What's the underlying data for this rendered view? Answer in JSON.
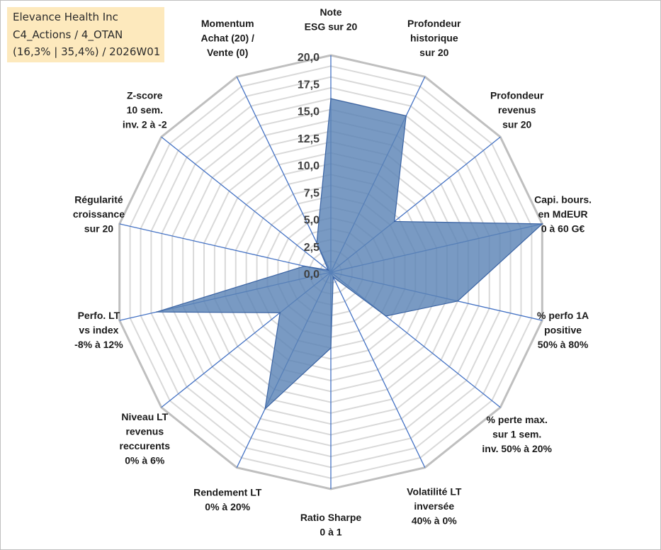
{
  "info_box": {
    "line1": "Elevance Health Inc",
    "line2": "C4_Actions / 4_OTAN",
    "line3": "(16,3% | 35,4%) / 2026W01"
  },
  "colors": {
    "fill": "#5b84b6",
    "stroke": "#3a63a3",
    "spokes": "#4472c4",
    "outer_grid": "#bfbfbf",
    "inner_grid": "#d9d9d9"
  },
  "chart_data": {
    "type": "radar",
    "ylim": [
      0,
      20
    ],
    "tick_values": [
      0,
      2.5,
      5,
      7.5,
      10,
      12.5,
      15,
      17.5,
      20
    ],
    "tick_labels": [
      "0,0",
      "2,5",
      "5,0",
      "7,5",
      "10,0",
      "12,5",
      "15,0",
      "17,5",
      "20,0"
    ],
    "grid": true,
    "categories": [
      [
        "Note",
        "ESG sur 20"
      ],
      [
        "Profondeur",
        "historique",
        "sur 20"
      ],
      [
        "Profondeur",
        "revenus",
        "sur 20"
      ],
      [
        "Capi. bours.",
        "en MdEUR",
        "0 à 60 G€"
      ],
      [
        "% perfo 1A",
        "positive",
        "50% à 80%"
      ],
      [
        "% perte max.",
        "sur 1 sem.",
        "inv. 50% à 20%"
      ],
      [
        "Volatilité LT",
        "inversée",
        "40% à 0%"
      ],
      [
        "Ratio Sharpe",
        "0 à 1"
      ],
      [
        "Rendement LT",
        "0% à 20%"
      ],
      [
        "Niveau LT",
        "revenus",
        "reccurents",
        "0% à 6%"
      ],
      [
        "Perfo. LT",
        "vs index",
        "-8% à 12%"
      ],
      [
        "Régularité",
        "croissance",
        "sur 20"
      ],
      [
        "Z-score",
        "10 sem.",
        "inv. 2 à -2"
      ],
      [
        "Momentum",
        "Achat (20) /",
        "Vente (0)"
      ]
    ],
    "series": [
      {
        "values": [
          16.0,
          16.0,
          7.5,
          20.0,
          12.0,
          6.5,
          0.5,
          7.0,
          14.0,
          6.0,
          16.5,
          2.5,
          0.3,
          3.0
        ]
      }
    ]
  }
}
